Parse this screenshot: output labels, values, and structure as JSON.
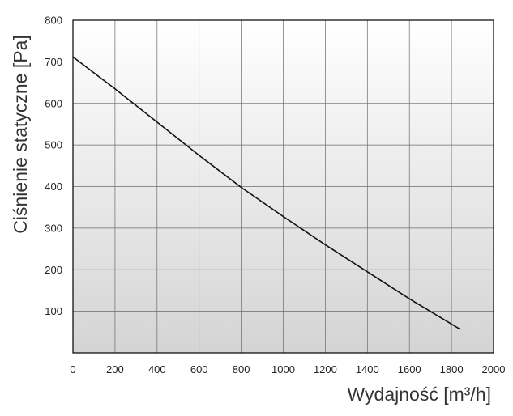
{
  "chart_data": {
    "type": "line",
    "title": "",
    "xlabel": "Wydajność [m³/h]",
    "ylabel": "Ciśnienie statyczne [Pa]",
    "xlim": [
      0,
      2000
    ],
    "ylim": [
      0,
      800
    ],
    "xticks": [
      0,
      200,
      400,
      600,
      800,
      1000,
      1200,
      1400,
      1600,
      1800,
      2000
    ],
    "yticks": [
      100,
      200,
      300,
      400,
      500,
      600,
      700,
      800
    ],
    "grid": true,
    "legend": "none",
    "background_gradient": [
      "#ffffff",
      "#d4d4d4"
    ],
    "line_color": "#111111",
    "series": [
      {
        "x": [
          0,
          200,
          400,
          600,
          800,
          1000,
          1200,
          1400,
          1600,
          1840
        ],
        "y": [
          712,
          635,
          555,
          475,
          398,
          328,
          260,
          195,
          130,
          57
        ]
      }
    ]
  }
}
